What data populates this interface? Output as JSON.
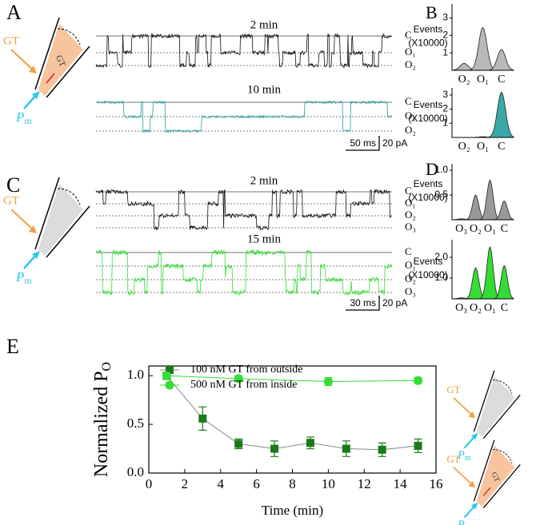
{
  "panel_labels": {
    "a": "A",
    "b": "B",
    "c": "C",
    "d": "D",
    "e": "E"
  },
  "panel_a": {
    "schematic": {
      "agent": "GT",
      "inner_label": "GT",
      "pipette": "Pm"
    },
    "traces": [
      {
        "title": "2 min",
        "levels": [
          "C",
          "O₁",
          "O₂"
        ]
      },
      {
        "title": "10 min",
        "levels": [
          "C",
          "O₁",
          "O₂"
        ]
      }
    ],
    "scale_bar": {
      "time": "50 ms",
      "current": "20 pA"
    }
  },
  "panel_b": {
    "histograms": [
      {
        "y_label": "Events",
        "y_unit": "(X10000)",
        "categories": [
          "O₂",
          "O₁",
          "C"
        ],
        "values": [
          0.4,
          2.45,
          1.2
        ],
        "ylim": [
          0,
          3.8
        ],
        "yticks": [
          1,
          2,
          3
        ],
        "color": "#b8b8b8"
      },
      {
        "y_label": "Events",
        "y_unit": "(X10000)",
        "categories": [
          "O₂",
          "O₁",
          "C"
        ],
        "values": [
          0,
          0.05,
          3.2
        ],
        "ylim": [
          0,
          3.5
        ],
        "yticks": [
          1,
          2,
          3
        ],
        "color": "#3aa8a8"
      }
    ]
  },
  "panel_c": {
    "schematic": {
      "agent": "GT",
      "pipette": "Pm"
    },
    "traces": [
      {
        "title": "2 min",
        "levels": [
          "C",
          "O₁",
          "O₂",
          "O₃"
        ]
      },
      {
        "title": "15 min",
        "levels": [
          "C",
          "O₁",
          "O₂",
          "O₃"
        ]
      }
    ],
    "scale_bar": {
      "time": "30 ms",
      "current": "20 pA"
    }
  },
  "panel_d": {
    "histograms": [
      {
        "y_label": "Events",
        "y_unit": "(X10000)",
        "categories": [
          "O₃",
          "O₂",
          "O₁",
          "C"
        ],
        "values": [
          0.02,
          0.5,
          0.8,
          0.38
        ],
        "ylim": [
          0,
          1.13
        ],
        "yticks": [
          {
            "value": 0.5,
            "label": "0.5"
          },
          {
            "value": 1.0,
            "label": "1.0"
          }
        ],
        "color": "#999999"
      },
      {
        "y_label": "Events",
        "y_unit": "(X10000)",
        "categories": [
          "O₃",
          "O₂",
          "O₁",
          "C"
        ],
        "values": [
          0.05,
          1.5,
          2.5,
          1.6
        ],
        "ylim": [
          0,
          2.85
        ],
        "yticks": [
          {
            "value": 1.0,
            "label": "1.0"
          },
          {
            "value": 2.0,
            "label": "2.0"
          }
        ],
        "color": "#33dd33"
      }
    ]
  },
  "schematics_e": [
    {
      "agent": "GT",
      "pipette": "Pm"
    },
    {
      "agent": "GT",
      "inner_label": "GT",
      "pipette": "Pm"
    }
  ],
  "chart_data": {
    "type": "line",
    "x_label": "Time (min)",
    "y_label": {
      "text": "Normalized P",
      "sub": "O"
    },
    "xlim": [
      0,
      16
    ],
    "xticks": [
      0,
      2,
      4,
      6,
      8,
      10,
      12,
      14,
      16
    ],
    "ylim": [
      0,
      1.1
    ],
    "yticks": [
      {
        "value": 0,
        "label": "0.0"
      },
      {
        "value": 0.5,
        "label": "0.5"
      },
      {
        "value": 1.0,
        "label": "1.0"
      }
    ],
    "series": [
      {
        "name": "100 nM GT from outside",
        "color": "#1a7a1a",
        "line_color": "#888888",
        "marker": "square",
        "x": [
          1,
          3,
          5,
          7,
          9,
          11,
          13,
          15
        ],
        "values": [
          1.0,
          0.56,
          0.3,
          0.25,
          0.31,
          0.25,
          0.24,
          0.28
        ],
        "errors": [
          0,
          0.12,
          0.05,
          0.08,
          0.06,
          0.08,
          0.07,
          0.07
        ]
      },
      {
        "name": "500 nM GT from inside",
        "color": "#33dd33",
        "line_color": "#33dd33",
        "marker": "circle",
        "x": [
          1,
          5,
          10,
          15
        ],
        "values": [
          1.0,
          0.97,
          0.94,
          0.95
        ],
        "errors": [
          0,
          0.03,
          0.04,
          0.03
        ]
      }
    ]
  }
}
